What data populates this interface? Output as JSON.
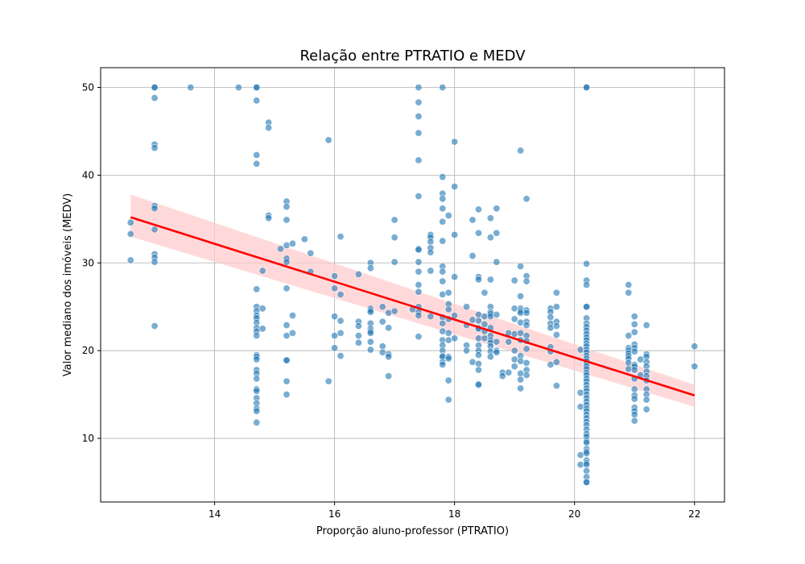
{
  "chart_data": {
    "type": "scatter",
    "title": "Relação entre PTRATIO e MEDV",
    "xlabel": "Proporção aluno-professor (PTRATIO)",
    "ylabel": "Valor mediano dos imóveis (MEDV)",
    "xlim": [
      12.1,
      22.5
    ],
    "ylim": [
      2.75,
      52.25
    ],
    "xticks": [
      14,
      16,
      18,
      20,
      22
    ],
    "yticks": [
      10,
      20,
      30,
      40,
      50
    ],
    "grid": true,
    "colors": {
      "points": "#1f77b4",
      "regression": "#ff0000",
      "ci_band": "#ffcccc",
      "grid": "#b0b0b0"
    },
    "points_by_x": [
      {
        "x": 12.6,
        "y": [
          34.6,
          33.3,
          30.3
        ]
      },
      {
        "x": 13.0,
        "y": [
          50,
          50,
          48.8,
          43.5,
          43.1,
          36.5,
          36.2,
          33.8,
          31.0,
          30.6,
          30.1,
          22.8
        ]
      },
      {
        "x": 13.6,
        "y": [
          50
        ]
      },
      {
        "x": 14.4,
        "y": [
          50
        ]
      },
      {
        "x": 14.7,
        "y": [
          50,
          50,
          48.5,
          42.3,
          41.3,
          27.0,
          25.0,
          24.5,
          24.0,
          23.7,
          23.2,
          22.6,
          22.2,
          21.7,
          19.5,
          19.3,
          19.0,
          17.8,
          17.4,
          16.8,
          15.6,
          15.4,
          14.6,
          14.0,
          13.4,
          13.1,
          11.8
        ]
      },
      {
        "x": 14.8,
        "y": [
          29.1,
          24.8,
          22.5
        ]
      },
      {
        "x": 14.9,
        "y": [
          46.0,
          45.4,
          35.4,
          35.1
        ]
      },
      {
        "x": 15.1,
        "y": [
          31.6
        ]
      },
      {
        "x": 15.2,
        "y": [
          37.0,
          36.4,
          34.9,
          32.0,
          30.5,
          30.1,
          27.1,
          22.9,
          21.7,
          18.9,
          18.9,
          16.5,
          15.0
        ]
      },
      {
        "x": 15.3,
        "y": [
          32.2,
          24.0,
          22.0
        ]
      },
      {
        "x": 15.5,
        "y": [
          32.7
        ]
      },
      {
        "x": 15.6,
        "y": [
          31.1,
          29.0
        ]
      },
      {
        "x": 15.9,
        "y": [
          44.0,
          16.5
        ]
      },
      {
        "x": 16.0,
        "y": [
          28.5,
          27.1,
          23.9,
          21.7,
          20.3
        ]
      },
      {
        "x": 16.1,
        "y": [
          33.0,
          26.4,
          23.4,
          22.0,
          19.4
        ]
      },
      {
        "x": 16.4,
        "y": [
          28.7,
          23.3,
          22.8,
          21.7,
          20.9
        ]
      },
      {
        "x": 16.6,
        "y": [
          30.0,
          29.4,
          24.8,
          24.6,
          24.4,
          23.1,
          22.5,
          22.2,
          22.0,
          21.0,
          20.1
        ]
      },
      {
        "x": 16.8,
        "y": [
          25.0,
          23.3,
          20.5,
          19.8
        ]
      },
      {
        "x": 16.9,
        "y": [
          24.3,
          22.6,
          19.6,
          19.3,
          17.1
        ]
      },
      {
        "x": 17.0,
        "y": [
          34.9,
          32.9,
          30.1,
          24.5
        ]
      },
      {
        "x": 17.3,
        "y": [
          24.7
        ]
      },
      {
        "x": 17.4,
        "y": [
          50,
          48.3,
          46.7,
          44.8,
          41.7,
          37.6,
          31.6,
          31.5,
          30.1,
          29.0,
          27.5,
          26.7,
          25.0,
          24.4,
          24.0,
          21.6
        ]
      },
      {
        "x": 17.6,
        "y": [
          33.2,
          32.9,
          32.4,
          31.7,
          31.2,
          29.1,
          23.9
        ]
      },
      {
        "x": 17.8,
        "y": [
          50,
          39.8,
          37.9,
          37.3,
          36.2,
          34.7,
          32.5,
          29.6,
          29.0,
          27.9,
          26.4,
          23.8,
          23.1,
          22.2,
          21.2,
          20.6,
          20.0,
          19.4,
          19.3,
          18.7,
          18.4
        ]
      },
      {
        "x": 17.9,
        "y": [
          35.4,
          26.6,
          25.3,
          24.7,
          23.6,
          22.0,
          21.2,
          19.3,
          19.1,
          16.6,
          14.4
        ]
      },
      {
        "x": 18.0,
        "y": [
          43.8,
          38.7,
          33.2,
          28.4,
          24.0,
          21.4
        ]
      },
      {
        "x": 18.2,
        "y": [
          25.0,
          22.9,
          20.6,
          20.0
        ]
      },
      {
        "x": 18.3,
        "y": [
          34.9,
          30.8,
          23.5,
          18.7
        ]
      },
      {
        "x": 18.4,
        "y": [
          36.1,
          33.4,
          28.4,
          28.1,
          24.1,
          23.4,
          22.6,
          22.5,
          21.4,
          20.6,
          20.0,
          19.5,
          18.5,
          17.8,
          16.2,
          16.1
        ]
      },
      {
        "x": 18.5,
        "y": [
          26.6,
          23.9,
          23.0,
          22.2,
          21.4
        ]
      },
      {
        "x": 18.6,
        "y": [
          35.1,
          32.9,
          28.1,
          25.0,
          24.4,
          24.2,
          23.9,
          22.6,
          21.7,
          21.2,
          20.9,
          20.5,
          19.9,
          19.3
        ]
      },
      {
        "x": 18.7,
        "y": [
          36.2,
          33.4,
          30.1,
          24.1,
          21.0,
          20.0,
          19.8
        ]
      },
      {
        "x": 18.8,
        "y": [
          17.5,
          17.1
        ]
      },
      {
        "x": 18.9,
        "y": [
          22.0,
          21.0,
          17.5
        ]
      },
      {
        "x": 19.0,
        "y": [
          28.0,
          24.8,
          23.6,
          21.9,
          20.0,
          19.0,
          18.2
        ]
      },
      {
        "x": 19.1,
        "y": [
          42.8,
          29.6,
          26.2,
          24.8,
          24.5,
          24.3,
          23.2,
          22.0,
          21.2,
          19.4,
          18.8,
          17.4,
          16.7,
          15.7
        ]
      },
      {
        "x": 19.2,
        "y": [
          37.3,
          28.5,
          27.9,
          24.6,
          24.3,
          23.3,
          22.9,
          21.7,
          21.1,
          20.2,
          18.6,
          17.8,
          17.2
        ]
      },
      {
        "x": 19.6,
        "y": [
          24.8,
          24.4,
          23.8,
          23.1,
          22.6,
          20.4,
          19.9,
          18.4
        ]
      },
      {
        "x": 19.7,
        "y": [
          26.6,
          25.0,
          23.3,
          22.8,
          21.8,
          18.7,
          16.0
        ]
      },
      {
        "x": 20.1,
        "y": [
          20.1,
          15.2,
          13.6,
          8.1,
          7.0
        ]
      },
      {
        "x": 20.2,
        "y": [
          50,
          50,
          29.9,
          28.0,
          27.5,
          25.0,
          25.0,
          23.7,
          23.1,
          22.7,
          22.3,
          21.9,
          21.5,
          21.2,
          20.8,
          20.5,
          20.1,
          19.8,
          19.4,
          19.1,
          18.8,
          18.5,
          18.2,
          17.9,
          17.5,
          17.2,
          16.8,
          16.5,
          16.1,
          15.7,
          15.4,
          15.0,
          14.6,
          14.2,
          13.8,
          13.4,
          13.1,
          12.7,
          12.3,
          11.9,
          11.5,
          11.0,
          10.5,
          10.2,
          9.7,
          9.5,
          8.8,
          8.5,
          8.3,
          7.5,
          7.2,
          7.0,
          6.3,
          5.6,
          5.0,
          5.0
        ]
      },
      {
        "x": 20.9,
        "y": [
          27.5,
          26.6,
          21.7,
          20.3,
          20.0,
          19.7,
          19.4,
          19.1,
          18.6,
          17.9
        ]
      },
      {
        "x": 21.0,
        "y": [
          23.9,
          23.0,
          22.1,
          20.7,
          20.3,
          19.9,
          18.4,
          18.2,
          17.8,
          16.8,
          15.6,
          14.9,
          14.5,
          13.5,
          13.1,
          12.7,
          12.0
        ]
      },
      {
        "x": 21.1,
        "y": [
          19.0,
          17.2
        ]
      },
      {
        "x": 21.2,
        "y": [
          22.9,
          19.6,
          19.3,
          18.7,
          18.2,
          17.6,
          17.1,
          16.6,
          15.6,
          15.0,
          14.4,
          13.3
        ]
      },
      {
        "x": 22.0,
        "y": [
          20.5,
          18.2
        ]
      }
    ],
    "regression": {
      "x": [
        12.6,
        22.0
      ],
      "y": [
        35.2,
        14.9
      ],
      "ci_upper": [
        37.8,
        16.1
      ],
      "ci_lower": [
        33.0,
        13.6
      ]
    }
  }
}
